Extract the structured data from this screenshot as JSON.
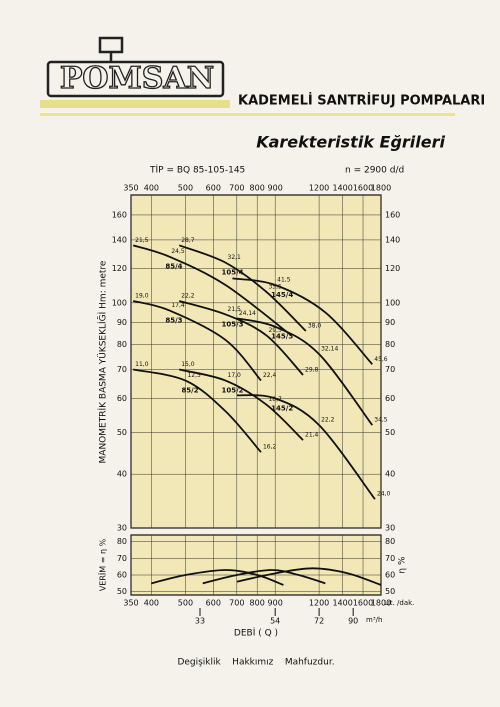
{
  "header": {
    "brand": "POMSAN",
    "product": "KADEMELİ SANTRİFUJ POMPALARI",
    "title": "Karekteristik Eğrileri"
  },
  "footer": "Degişiklik    Hakkımız    Mahfuzdur.",
  "chart_data": [
    {
      "type": "line",
      "subtitle_left": "TİP = BQ 85-105-145",
      "subtitle_right": "n = 2900 d/d",
      "y_label": "MANOMETRİK  BASMA  YÜKSEKLİĞİ  Hm: metre",
      "xscale": "log",
      "yscale": "log",
      "grid": true,
      "xlim": [
        350,
        1800
      ],
      "ylim": [
        30,
        178
      ],
      "xticks": [
        350,
        400,
        500,
        600,
        700,
        800,
        900,
        1200,
        1400,
        1600,
        1800
      ],
      "yticks": [
        30,
        40,
        50,
        60,
        70,
        80,
        90,
        100,
        120,
        140,
        160
      ],
      "series": [
        {
          "name": "85/4",
          "color": "#111111",
          "x": [
            355,
            450,
            650,
            1000
          ],
          "values": [
            136,
            128,
            110,
            84
          ],
          "point_labels": [
            "21,5",
            "24,5",
            null,
            null
          ]
        },
        {
          "name": "105/4",
          "color": "#111111",
          "x": [
            480,
            650,
            850,
            1100
          ],
          "values": [
            136,
            124,
            106,
            86
          ],
          "point_labels": [
            "28,7",
            "32,1",
            "35,5",
            "38,0"
          ]
        },
        {
          "name": "145/4",
          "color": "#111111",
          "x": [
            680,
            900,
            1250,
            1700
          ],
          "values": [
            114,
            110,
            95,
            72
          ],
          "point_labels": [
            null,
            "41,5",
            null,
            "45,6"
          ]
        },
        {
          "name": "85/3",
          "color": "#111111",
          "x": [
            355,
            450,
            650,
            820
          ],
          "values": [
            101,
            96,
            82,
            66
          ],
          "point_labels": [
            "19,0",
            "17,4",
            null,
            "22,4"
          ]
        },
        {
          "name": "105/3",
          "color": "#111111",
          "x": [
            480,
            650,
            850,
            1080
          ],
          "values": [
            101,
            94,
            84,
            68
          ],
          "point_labels": [
            "22,2",
            "21,5",
            "29,5",
            "29,8"
          ]
        },
        {
          "name": "145/3",
          "color": "#111111",
          "x": [
            700,
            900,
            1200,
            1700
          ],
          "values": [
            92,
            88,
            76,
            52
          ],
          "point_labels": [
            "24,14",
            null,
            "32,14",
            "34,5"
          ]
        },
        {
          "name": "85/2",
          "color": "#111111",
          "x": [
            355,
            500,
            650,
            820
          ],
          "values": [
            70,
            66,
            56,
            45
          ],
          "point_labels": [
            "11,0",
            "12,5",
            null,
            "16,2"
          ]
        },
        {
          "name": "105/2",
          "color": "#111111",
          "x": [
            480,
            650,
            850,
            1080
          ],
          "values": [
            70,
            66,
            58,
            48
          ],
          "point_labels": [
            "15,0",
            "17,0",
            "18,7",
            "21,4"
          ]
        },
        {
          "name": "145/2",
          "color": "#111111",
          "x": [
            700,
            900,
            1200,
            1730
          ],
          "values": [
            61,
            60,
            52,
            35
          ],
          "point_labels": [
            null,
            null,
            "22,2",
            "24,0"
          ]
        }
      ]
    },
    {
      "type": "line",
      "y_label": "VERİM = η %",
      "y2_label": "η %",
      "x_label": "DEBİ ( Q )",
      "x_unit": "Lit. /dak.",
      "x2_unit": "m³/h",
      "xscale": "log",
      "grid": true,
      "xlim": [
        350,
        1800
      ],
      "ylim": [
        48,
        84
      ],
      "xticks": [
        350,
        400,
        500,
        600,
        700,
        800,
        900,
        1200,
        1400,
        1600,
        1800
      ],
      "x2ticks": [
        {
          "value": 550,
          "label": "33"
        },
        {
          "value": 900,
          "label": "54"
        },
        {
          "value": 1200,
          "label": "72"
        },
        {
          "value": 1500,
          "label": "90"
        }
      ],
      "yticks": [
        50,
        60,
        70,
        80
      ],
      "series": [
        {
          "color": "#111111",
          "x": [
            400,
            500,
            650,
            800,
            950
          ],
          "values": [
            55,
            60,
            63,
            60,
            54
          ]
        },
        {
          "color": "#111111",
          "x": [
            560,
            700,
            880,
            1050,
            1250
          ],
          "values": [
            55,
            60,
            63,
            60,
            55
          ]
        },
        {
          "color": "#111111",
          "x": [
            700,
            900,
            1150,
            1450,
            1800
          ],
          "values": [
            56,
            61,
            64,
            61,
            54
          ]
        }
      ]
    }
  ]
}
